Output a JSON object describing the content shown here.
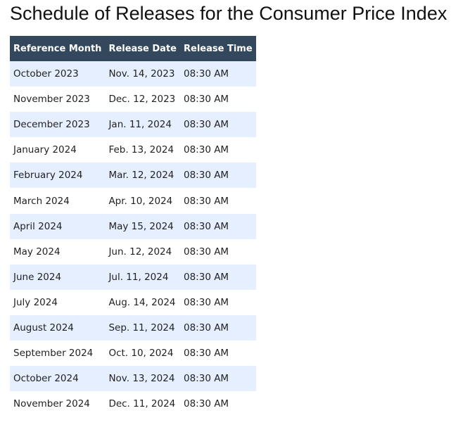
{
  "title": "Schedule of Releases for the Consumer Price Index",
  "table": {
    "headers": [
      "Reference Month",
      "Release Date",
      "Release Time"
    ],
    "rows": [
      [
        "October 2023",
        "Nov. 14, 2023",
        "08:30 AM"
      ],
      [
        "November 2023",
        "Dec. 12, 2023",
        "08:30 AM"
      ],
      [
        "December 2023",
        "Jan. 11, 2024",
        "08:30 AM"
      ],
      [
        "January 2024",
        "Feb. 13, 2024",
        "08:30 AM"
      ],
      [
        "February 2024",
        "Mar. 12, 2024",
        "08:30 AM"
      ],
      [
        "March 2024",
        "Apr. 10, 2024",
        "08:30 AM"
      ],
      [
        "April 2024",
        "May 15, 2024",
        "08:30 AM"
      ],
      [
        "May 2024",
        "Jun. 12, 2024",
        "08:30 AM"
      ],
      [
        "June 2024",
        "Jul. 11, 2024",
        "08:30 AM"
      ],
      [
        "July 2024",
        "Aug. 14, 2024",
        "08:30 AM"
      ],
      [
        "August 2024",
        "Sep. 11, 2024",
        "08:30 AM"
      ],
      [
        "September 2024",
        "Oct. 10, 2024",
        "08:30 AM"
      ],
      [
        "October 2024",
        "Nov. 13, 2024",
        "08:30 AM"
      ],
      [
        "November 2024",
        "Dec. 11, 2024",
        "08:30 AM"
      ]
    ]
  }
}
